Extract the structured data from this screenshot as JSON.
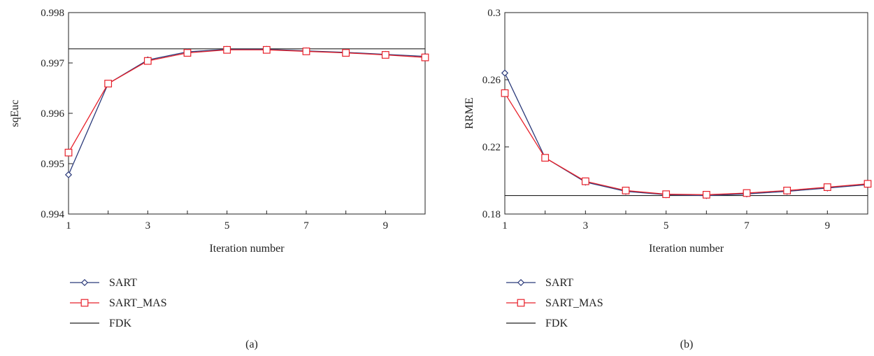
{
  "chart_data": [
    {
      "type": "line",
      "panel_label": "(a)",
      "xlabel": "Iteration number",
      "ylabel": "sqEuc",
      "xlim": [
        1,
        10
      ],
      "ylim": [
        0.994,
        0.998
      ],
      "xticks": [
        1,
        3,
        5,
        7,
        9
      ],
      "xtick_labels": [
        "1",
        "3",
        "5",
        "7",
        "9"
      ],
      "yticks": [
        0.994,
        0.995,
        0.996,
        0.997,
        0.998
      ],
      "ytick_labels": [
        "0.994",
        "0.995",
        "0.996",
        "0.997",
        "0.998"
      ],
      "grid": false,
      "legend_position": "below",
      "series": [
        {
          "name": "SART",
          "color": "#2b3a7a",
          "marker": "diamond",
          "x": [
            1,
            2,
            3,
            4,
            5,
            6,
            7,
            8,
            9,
            10
          ],
          "values": [
            0.99478,
            0.99659,
            0.99706,
            0.99722,
            0.99727,
            0.99727,
            0.99724,
            0.99721,
            0.99717,
            0.99713
          ]
        },
        {
          "name": "SART_MAS",
          "color": "#e8202a",
          "marker": "square",
          "x": [
            1,
            2,
            3,
            4,
            5,
            6,
            7,
            8,
            9,
            10
          ],
          "values": [
            0.99522,
            0.99659,
            0.99704,
            0.9972,
            0.99726,
            0.99726,
            0.99723,
            0.9972,
            0.99716,
            0.99711
          ]
        },
        {
          "name": "FDK",
          "color": "#222222",
          "marker": "none",
          "x": [
            1,
            10
          ],
          "values": [
            0.99728,
            0.99728
          ]
        }
      ]
    },
    {
      "type": "line",
      "panel_label": "(b)",
      "xlabel": "Iteration number",
      "ylabel": "RRME",
      "xlim": [
        1,
        10
      ],
      "ylim": [
        0.18,
        0.3
      ],
      "xticks": [
        1,
        3,
        5,
        7,
        9
      ],
      "xtick_labels": [
        "1",
        "3",
        "5",
        "7",
        "9"
      ],
      "yticks": [
        0.18,
        0.22,
        0.26,
        0.3
      ],
      "ytick_labels": [
        "0.18",
        "0.22",
        "0.26",
        "0.3"
      ],
      "grid": false,
      "legend_position": "below",
      "series": [
        {
          "name": "SART",
          "color": "#2b3a7a",
          "marker": "diamond",
          "x": [
            1,
            2,
            3,
            4,
            5,
            6,
            7,
            8,
            9,
            10
          ],
          "values": [
            0.264,
            0.2135,
            0.199,
            0.1935,
            0.1915,
            0.191,
            0.192,
            0.1935,
            0.1955,
            0.1975
          ]
        },
        {
          "name": "SART_MAS",
          "color": "#e8202a",
          "marker": "square",
          "x": [
            1,
            2,
            3,
            4,
            5,
            6,
            7,
            8,
            9,
            10
          ],
          "values": [
            0.252,
            0.2135,
            0.1995,
            0.194,
            0.1918,
            0.1915,
            0.1925,
            0.194,
            0.196,
            0.198
          ]
        },
        {
          "name": "FDK",
          "color": "#222222",
          "marker": "none",
          "x": [
            1,
            10
          ],
          "values": [
            0.191,
            0.191
          ]
        }
      ]
    }
  ]
}
